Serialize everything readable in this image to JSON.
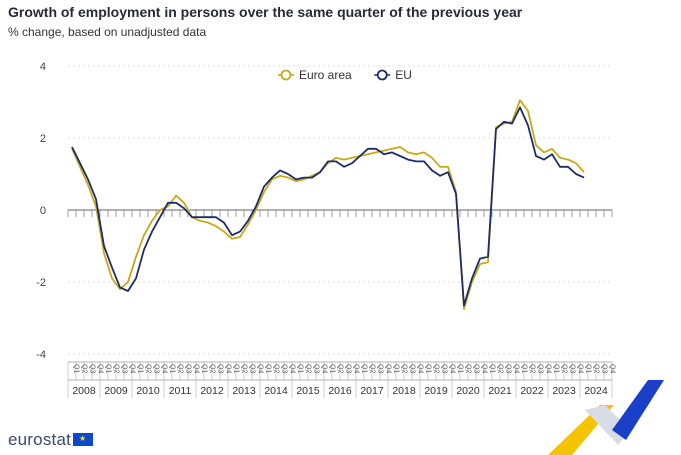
{
  "chart_data": {
    "type": "line",
    "title": "Growth of employment in persons over the same quarter of the previous year",
    "subtitle": "% change, based on unadjusted data",
    "ylim": [
      -4,
      4
    ],
    "yticks": [
      4,
      2,
      0,
      -2,
      -4
    ],
    "quarter_labels": [
      "Q1",
      "Q2",
      "Q3",
      "Q4"
    ],
    "years": [
      "2008",
      "2009",
      "2010",
      "2011",
      "2012",
      "2013",
      "2014",
      "2015",
      "2016",
      "2017",
      "2018",
      "2019",
      "2020",
      "2021",
      "2022",
      "2023",
      "2024"
    ],
    "legend_position": "top-center",
    "series": [
      {
        "name": "Euro area",
        "color": "#c9a81a",
        "values": [
          1.7,
          1.2,
          0.7,
          0.1,
          -1.2,
          -1.9,
          -2.2,
          -2.0,
          -1.3,
          -0.7,
          -0.3,
          0.0,
          0.1,
          0.4,
          0.2,
          -0.2,
          -0.3,
          -0.35,
          -0.45,
          -0.6,
          -0.8,
          -0.75,
          -0.4,
          0.0,
          0.5,
          0.85,
          0.95,
          0.9,
          0.8,
          0.85,
          0.95,
          1.05,
          1.3,
          1.45,
          1.4,
          1.45,
          1.5,
          1.55,
          1.6,
          1.65,
          1.7,
          1.75,
          1.6,
          1.55,
          1.6,
          1.45,
          1.2,
          1.2,
          0.5,
          -2.75,
          -2.0,
          -1.5,
          -1.45,
          2.3,
          2.4,
          2.45,
          3.05,
          2.75,
          1.8,
          1.6,
          1.7,
          1.45,
          1.4,
          1.3,
          1.05
        ]
      },
      {
        "name": "EU",
        "color": "#1d2c6b",
        "values": [
          1.75,
          1.3,
          0.85,
          0.3,
          -1.0,
          -1.6,
          -2.15,
          -2.25,
          -1.9,
          -1.1,
          -0.6,
          -0.2,
          0.2,
          0.2,
          0.05,
          -0.2,
          -0.2,
          -0.2,
          -0.2,
          -0.35,
          -0.7,
          -0.6,
          -0.3,
          0.1,
          0.65,
          0.9,
          1.1,
          1.0,
          0.85,
          0.9,
          0.9,
          1.05,
          1.35,
          1.35,
          1.2,
          1.3,
          1.5,
          1.7,
          1.7,
          1.55,
          1.6,
          1.5,
          1.4,
          1.35,
          1.35,
          1.1,
          0.95,
          1.05,
          0.45,
          -2.65,
          -1.9,
          -1.35,
          -1.3,
          2.25,
          2.45,
          2.4,
          2.85,
          2.35,
          1.5,
          1.4,
          1.55,
          1.2,
          1.2,
          1.0,
          0.9
        ]
      }
    ]
  },
  "branding": {
    "logo_text": "eurostat"
  }
}
